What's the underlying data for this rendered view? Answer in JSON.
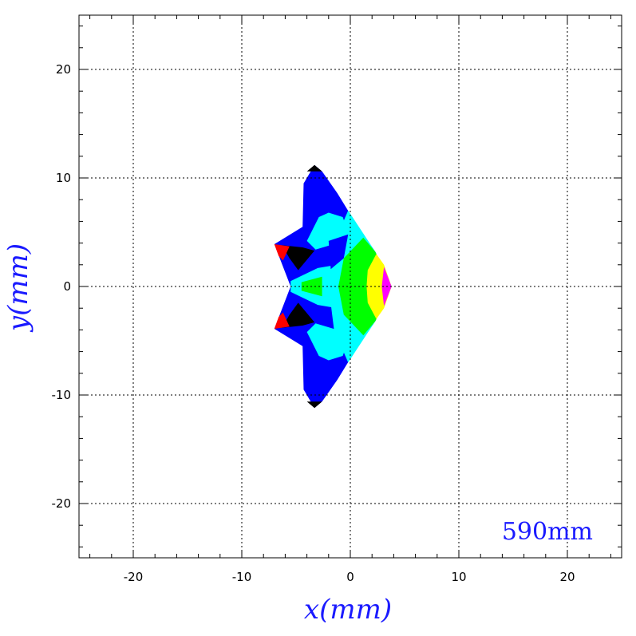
{
  "chart_data": {
    "type": "heatmap",
    "title": "",
    "xlabel": "x(mm)",
    "ylabel": "y(mm)",
    "xlim": [
      -25,
      25
    ],
    "ylim": [
      -25,
      25
    ],
    "x_ticks": [
      -20,
      -10,
      0,
      10,
      20
    ],
    "y_ticks": [
      -20,
      -10,
      0,
      10,
      20
    ],
    "x_tick_labels": [
      "-20",
      "-10",
      "0",
      "10",
      "20"
    ],
    "y_tick_labels": [
      "-20",
      "-10",
      "0",
      "10",
      "20"
    ],
    "grid": true,
    "grid_style": "dotted",
    "annotation": "590mm",
    "annotation_position": "bottom-right",
    "contour_colors": [
      "#000000",
      "#0000ff",
      "#00ffff",
      "#00ff00",
      "#ffff00",
      "#ff00ff",
      "#ff0000"
    ],
    "outline": [
      [
        -3.3,
        11.2
      ],
      [
        -2.6,
        10.6
      ],
      [
        -1.2,
        8.6
      ],
      [
        0.4,
        6.0
      ],
      [
        2.3,
        3.2
      ],
      [
        3.8,
        0
      ],
      [
        2.3,
        -3.2
      ],
      [
        0.4,
        -6.0
      ],
      [
        -1.2,
        -8.6
      ],
      [
        -2.6,
        -10.6
      ],
      [
        -3.3,
        -11.2
      ],
      [
        -4.3,
        -9.5
      ],
      [
        -4.4,
        -5.5
      ],
      [
        -7.0,
        -3.9
      ],
      [
        -5.5,
        0
      ],
      [
        -7.0,
        3.9
      ],
      [
        -4.4,
        5.5
      ],
      [
        -4.3,
        9.5
      ]
    ],
    "regions": [
      {
        "color": "#0000ff",
        "points": [
          [
            -3.3,
            11.2
          ],
          [
            -2.6,
            10.6
          ],
          [
            -1.2,
            8.6
          ],
          [
            0.4,
            6.0
          ],
          [
            2.3,
            3.2
          ],
          [
            3.8,
            0
          ],
          [
            2.3,
            -3.2
          ],
          [
            0.4,
            -6.0
          ],
          [
            -1.2,
            -8.6
          ],
          [
            -2.6,
            -10.6
          ],
          [
            -3.3,
            -11.2
          ],
          [
            -4.3,
            -9.5
          ],
          [
            -4.4,
            -5.5
          ],
          [
            -7.0,
            -3.9
          ],
          [
            -5.5,
            0
          ],
          [
            -7.0,
            3.9
          ],
          [
            -4.4,
            5.5
          ],
          [
            -4.3,
            9.5
          ]
        ]
      },
      {
        "color": "#000000",
        "points": [
          [
            -3.3,
            11.2
          ],
          [
            -2.6,
            10.6
          ],
          [
            -4.0,
            10.6
          ]
        ]
      },
      {
        "color": "#000000",
        "points": [
          [
            -3.3,
            -11.2
          ],
          [
            -2.6,
            -10.6
          ],
          [
            -4.0,
            -10.6
          ]
        ]
      },
      {
        "color": "#00ffff",
        "points": [
          [
            -0.2,
            7.0
          ],
          [
            2.3,
            3.2
          ],
          [
            3.8,
            0
          ],
          [
            2.3,
            -3.2
          ],
          [
            -0.2,
            -7.0
          ],
          [
            -1.5,
            -4.0
          ],
          [
            -2.0,
            0
          ],
          [
            -1.5,
            4.0
          ]
        ]
      },
      {
        "color": "#00ffff",
        "points": [
          [
            -2.9,
            6.4
          ],
          [
            -2.0,
            6.8
          ],
          [
            -0.7,
            6.4
          ],
          [
            -0.3,
            5.3
          ],
          [
            -1.2,
            4.0
          ],
          [
            -3.2,
            3.4
          ],
          [
            -4.0,
            4.2
          ]
        ]
      },
      {
        "color": "#00ffff",
        "points": [
          [
            -2.9,
            -6.4
          ],
          [
            -2.0,
            -6.8
          ],
          [
            -0.7,
            -6.4
          ],
          [
            -0.3,
            -5.3
          ],
          [
            -1.2,
            -4.0
          ],
          [
            -3.2,
            -3.4
          ],
          [
            -4.0,
            -4.2
          ]
        ]
      },
      {
        "color": "#00ffff",
        "points": [
          [
            -5.5,
            0.5
          ],
          [
            -3.0,
            1.7
          ],
          [
            -1.2,
            2.0
          ],
          [
            -1.2,
            -2.0
          ],
          [
            -3.0,
            -1.7
          ],
          [
            -5.5,
            -0.5
          ]
        ]
      },
      {
        "color": "#0000ff",
        "points": [
          [
            -2.0,
            4.2
          ],
          [
            -0.2,
            4.8
          ],
          [
            -0.6,
            2.6
          ],
          [
            -1.8,
            1.6
          ]
        ]
      },
      {
        "color": "#00ff00",
        "points": [
          [
            1.2,
            4.5
          ],
          [
            2.3,
            3.2
          ],
          [
            3.0,
            1.8
          ],
          [
            3.0,
            -1.8
          ],
          [
            2.3,
            -3.2
          ],
          [
            1.2,
            -4.5
          ],
          [
            -0.6,
            -2.6
          ],
          [
            -1.1,
            0
          ],
          [
            -0.6,
            2.6
          ]
        ]
      },
      {
        "color": "#00ff00",
        "points": [
          [
            -4.5,
            0.4
          ],
          [
            -2.6,
            0.9
          ],
          [
            -2.6,
            -0.9
          ],
          [
            -4.5,
            -0.4
          ]
        ]
      },
      {
        "color": "#ffff00",
        "points": [
          [
            2.4,
            3.0
          ],
          [
            3.1,
            2.0
          ],
          [
            3.8,
            0
          ],
          [
            3.1,
            -2.0
          ],
          [
            2.4,
            -3.0
          ],
          [
            1.6,
            -1.5
          ],
          [
            1.5,
            0
          ],
          [
            1.6,
            1.5
          ]
        ]
      },
      {
        "color": "#ff00ff",
        "points": [
          [
            3.1,
            1.8
          ],
          [
            3.8,
            0
          ],
          [
            3.1,
            -1.8
          ],
          [
            2.9,
            0
          ]
        ]
      },
      {
        "color": "#000000",
        "points": [
          [
            -6.3,
            3.8
          ],
          [
            -4.4,
            3.6
          ],
          [
            -3.3,
            3.3
          ],
          [
            -4.8,
            1.5
          ],
          [
            -5.6,
            2.6
          ]
        ]
      },
      {
        "color": "#000000",
        "points": [
          [
            -6.3,
            -3.8
          ],
          [
            -4.4,
            -3.6
          ],
          [
            -3.3,
            -3.3
          ],
          [
            -4.8,
            -1.5
          ],
          [
            -5.6,
            -2.6
          ]
        ]
      },
      {
        "color": "#ff0000",
        "points": [
          [
            -7.0,
            3.9
          ],
          [
            -5.6,
            3.7
          ],
          [
            -6.2,
            2.4
          ],
          [
            -6.6,
            2.8
          ]
        ]
      },
      {
        "color": "#ff0000",
        "points": [
          [
            -7.0,
            -3.9
          ],
          [
            -5.6,
            -3.7
          ],
          [
            -6.2,
            -2.4
          ],
          [
            -6.6,
            -2.8
          ]
        ]
      }
    ]
  }
}
